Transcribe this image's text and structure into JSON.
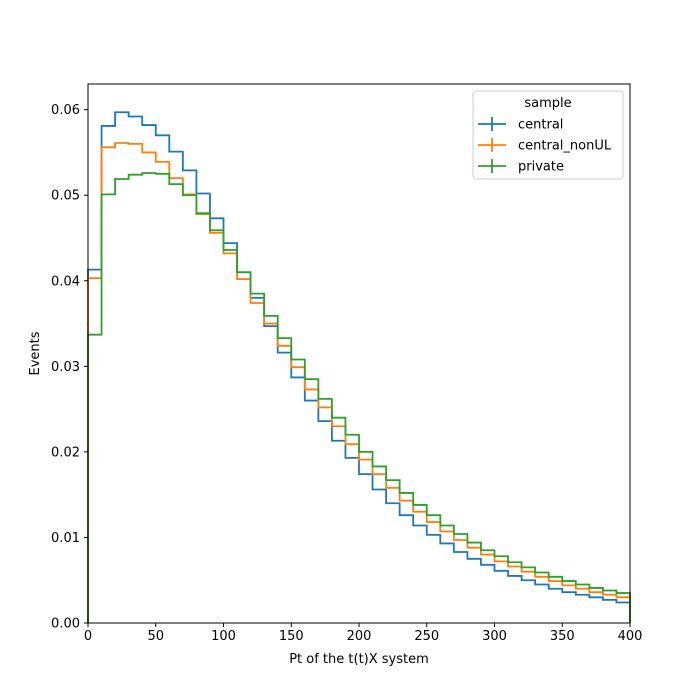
{
  "chart_data": {
    "type": "line",
    "style": "step-histogram",
    "xlabel": "Pt of the t(t)X system",
    "ylabel": "Events",
    "xlim": [
      0,
      400
    ],
    "ylim": [
      0,
      0.063
    ],
    "xticks": [
      0,
      50,
      100,
      150,
      200,
      250,
      300,
      350,
      400
    ],
    "yticks": [
      0.0,
      0.01,
      0.02,
      0.03,
      0.04,
      0.05,
      0.06
    ],
    "ytick_labels": [
      "0.00",
      "0.01",
      "0.02",
      "0.03",
      "0.04",
      "0.05",
      "0.06"
    ],
    "grid": false,
    "legend": {
      "title": "sample",
      "placement": "top-right"
    },
    "bin_edges": [
      0,
      10,
      20,
      30,
      40,
      50,
      60,
      70,
      80,
      90,
      100,
      110,
      120,
      130,
      140,
      150,
      160,
      170,
      180,
      190,
      200,
      210,
      220,
      230,
      240,
      250,
      260,
      270,
      280,
      290,
      300,
      310,
      320,
      330,
      340,
      350,
      360,
      370,
      380,
      390,
      400
    ],
    "series": [
      {
        "name": "central",
        "color": "#1f77b4",
        "values": [
          0.0413,
          0.0581,
          0.0597,
          0.0592,
          0.0582,
          0.057,
          0.0551,
          0.0529,
          0.0502,
          0.0473,
          0.0444,
          0.041,
          0.038,
          0.0347,
          0.0316,
          0.0287,
          0.026,
          0.0236,
          0.0213,
          0.0193,
          0.0174,
          0.0156,
          0.014,
          0.0126,
          0.0114,
          0.0103,
          0.0093,
          0.0083,
          0.0075,
          0.0068,
          0.0061,
          0.0055,
          0.005,
          0.0045,
          0.004,
          0.0036,
          0.0033,
          0.003,
          0.0027,
          0.0024
        ]
      },
      {
        "name": "central_nonUL",
        "color": "#ff7f0e",
        "values": [
          0.0403,
          0.0556,
          0.0561,
          0.056,
          0.055,
          0.0539,
          0.052,
          0.0501,
          0.0478,
          0.0456,
          0.0432,
          0.0402,
          0.0374,
          0.035,
          0.0324,
          0.0299,
          0.0273,
          0.0252,
          0.023,
          0.0209,
          0.0191,
          0.0174,
          0.0158,
          0.0143,
          0.013,
          0.0118,
          0.0107,
          0.0097,
          0.0088,
          0.008,
          0.0072,
          0.0066,
          0.006,
          0.0054,
          0.0049,
          0.0044,
          0.004,
          0.0036,
          0.0033,
          0.003
        ]
      },
      {
        "name": "private",
        "color": "#2ca02c",
        "values": [
          0.0337,
          0.0501,
          0.0519,
          0.0524,
          0.0526,
          0.0525,
          0.0513,
          0.05,
          0.0479,
          0.0459,
          0.0436,
          0.041,
          0.0385,
          0.0359,
          0.0333,
          0.0308,
          0.0285,
          0.0262,
          0.024,
          0.022,
          0.02,
          0.0183,
          0.0167,
          0.0152,
          0.0138,
          0.0126,
          0.0114,
          0.0104,
          0.0094,
          0.0085,
          0.0078,
          0.0071,
          0.0065,
          0.0059,
          0.0054,
          0.0049,
          0.0045,
          0.0041,
          0.0038,
          0.0035
        ]
      }
    ]
  }
}
